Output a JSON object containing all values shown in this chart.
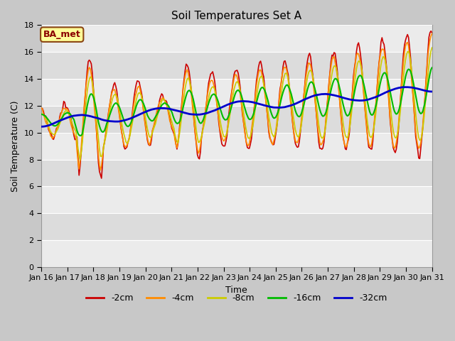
{
  "title": "Soil Temperatures Set A",
  "xlabel": "Time",
  "ylabel": "Soil Temperature (C)",
  "ylim": [
    0,
    18
  ],
  "yticks": [
    0,
    2,
    4,
    6,
    8,
    10,
    12,
    14,
    16,
    18
  ],
  "annotation": "BA_met",
  "annotation_color": "#8B0000",
  "annotation_bg": "#FFFF99",
  "bg_color_light": "#EBEBEB",
  "bg_color_dark": "#DCDCDC",
  "legend_entries": [
    "-2cm",
    "-4cm",
    "-8cm",
    "-16cm",
    "-32cm"
  ],
  "line_colors": [
    "#CC0000",
    "#FF8C00",
    "#CCCC00",
    "#00BB00",
    "#0000CC"
  ],
  "line_widths": [
    1.2,
    1.2,
    1.2,
    1.5,
    2.0
  ],
  "x_tick_labels": [
    "Jan 16",
    "Jan 17",
    "Jan 18",
    "Jan 19",
    "Jan 20",
    "Jan 21",
    "Jan 22",
    "Jan 23",
    "Jan 24",
    "Jan 25",
    "Jan 26",
    "Jan 27",
    "Jan 28",
    "Jan 29",
    "Jan 30",
    "Jan 31"
  ],
  "title_fontsize": 11,
  "tick_fontsize": 8,
  "label_fontsize": 9
}
